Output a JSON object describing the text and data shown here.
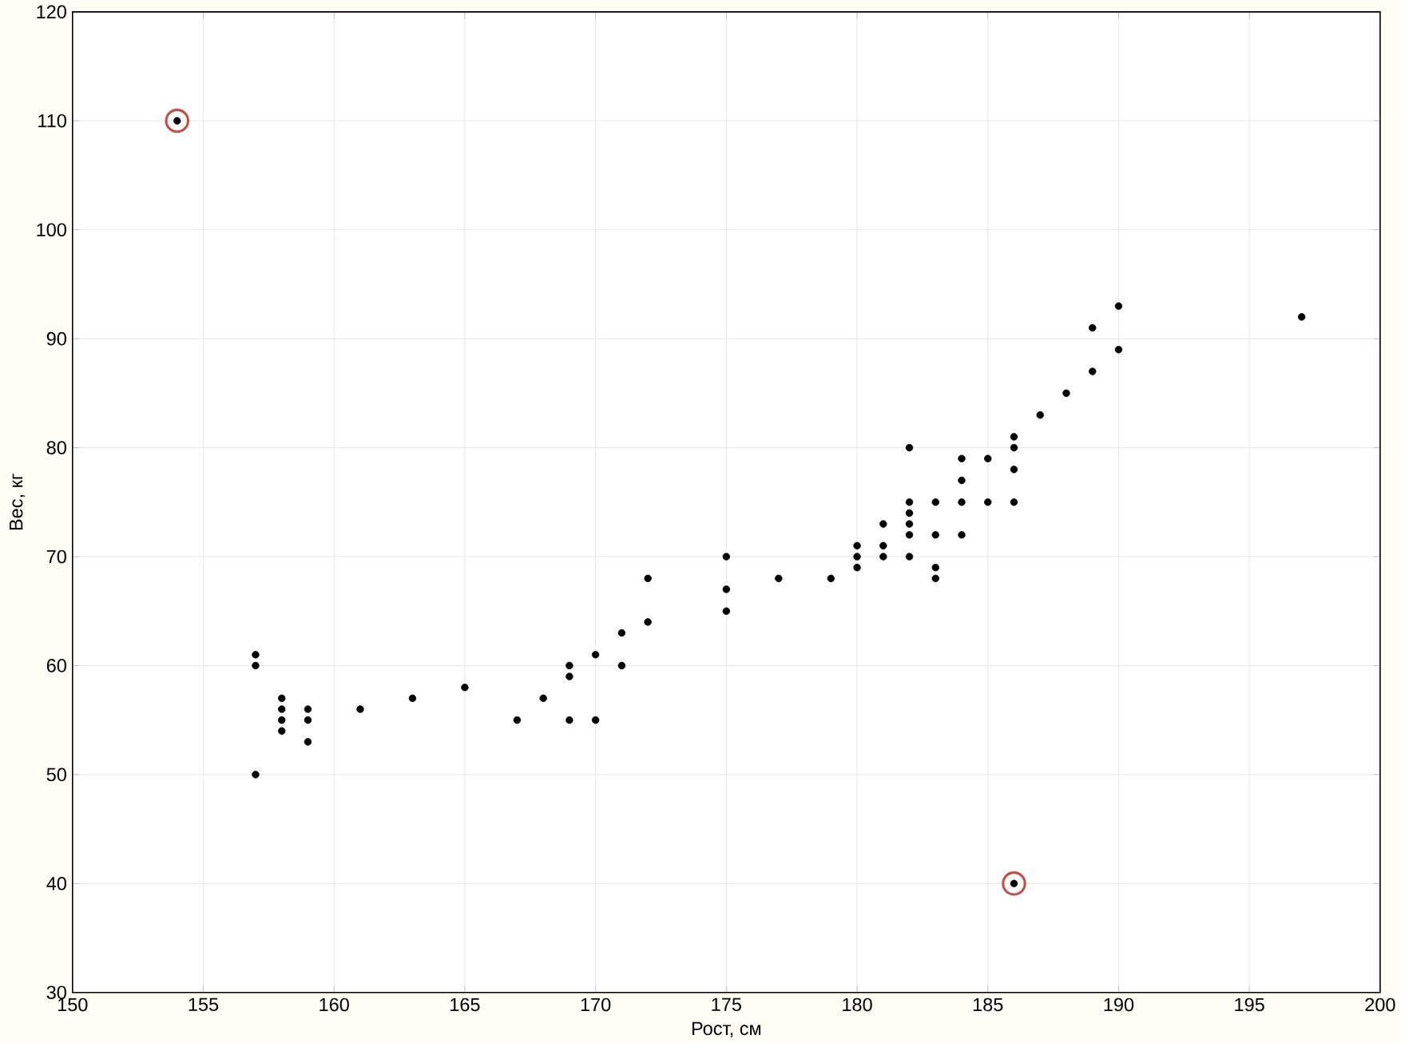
{
  "chart_data": {
    "type": "scatter",
    "xlabel": "Рост, см",
    "ylabel": "Вес, кг",
    "xlim": [
      150,
      200
    ],
    "ylim": [
      30,
      120
    ],
    "xticks": [
      150,
      155,
      160,
      165,
      170,
      175,
      180,
      185,
      190,
      195,
      200
    ],
    "yticks": [
      30,
      40,
      50,
      60,
      70,
      80,
      90,
      100,
      110,
      120
    ],
    "grid": true,
    "marker": "circle",
    "series": [
      {
        "color": "#000000",
        "x": [
          154,
          157,
          157,
          157,
          158,
          158,
          158,
          158,
          159,
          159,
          159,
          161,
          163,
          165,
          167,
          168,
          169,
          169,
          169,
          170,
          170,
          171,
          171,
          172,
          172,
          175,
          175,
          175,
          177,
          179,
          180,
          180,
          180,
          181,
          181,
          181,
          182,
          182,
          182,
          182,
          182,
          182,
          183,
          183,
          183,
          183,
          184,
          184,
          184,
          184,
          185,
          185,
          186,
          186,
          186,
          186,
          186,
          187,
          188,
          189,
          189,
          190,
          190,
          197
        ],
        "values": [
          110,
          61,
          60,
          50,
          57,
          56,
          55,
          54,
          56,
          55,
          53,
          56,
          57,
          58,
          55,
          57,
          60,
          59,
          55,
          61,
          55,
          63,
          60,
          68,
          64,
          70,
          67,
          65,
          68,
          68,
          71,
          70,
          69,
          73,
          71,
          70,
          80,
          75,
          74,
          73,
          72,
          70,
          75,
          72,
          69,
          68,
          79,
          77,
          75,
          72,
          79,
          75,
          81,
          80,
          78,
          75,
          40,
          83,
          85,
          91,
          87,
          93,
          89,
          92
        ]
      },
      {
        "color": "#c0504d",
        "marker": "open circle",
        "x": [
          154,
          186
        ],
        "values": [
          110,
          40
        ]
      }
    ]
  }
}
